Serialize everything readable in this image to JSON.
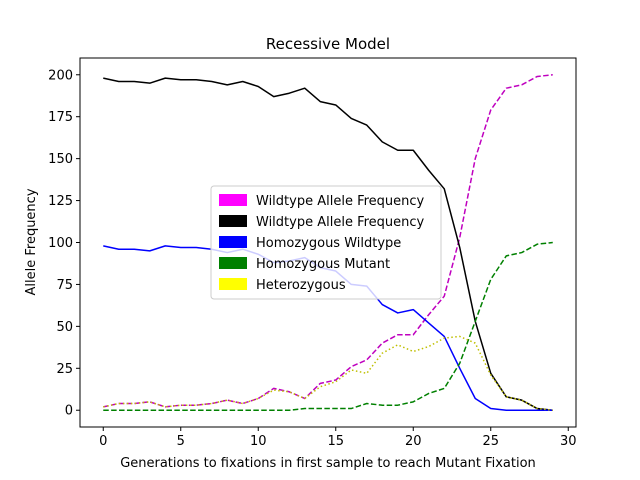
{
  "chart_data": {
    "type": "line",
    "title": "Recessive Model",
    "xlabel": "Generations to fixations in first sample to reach Mutant Fixation",
    "ylabel": "Allele Frequency",
    "xlim": [
      -1.5,
      30.5
    ],
    "ylim": [
      -10,
      210
    ],
    "xticks": [
      0,
      5,
      10,
      15,
      20,
      25,
      30
    ],
    "yticks": [
      0,
      25,
      50,
      75,
      100,
      125,
      150,
      175,
      200
    ],
    "grid": false,
    "legend_placement": "center",
    "x": [
      0,
      1,
      2,
      3,
      4,
      5,
      6,
      7,
      8,
      9,
      10,
      11,
      12,
      13,
      14,
      15,
      16,
      17,
      18,
      19,
      20,
      21,
      22,
      23,
      24,
      25,
      26,
      27,
      28,
      29
    ],
    "series": [
      {
        "name": "Wildtype Allele Frequency",
        "color": "#bf00bf",
        "legend_color": "#ff00ff",
        "style": "dashed",
        "values": [
          2,
          4,
          4,
          5,
          2,
          3,
          3,
          4,
          6,
          4,
          7,
          13,
          11,
          7,
          16,
          18,
          26,
          30,
          40,
          45,
          45,
          57,
          68,
          103,
          150,
          179,
          192,
          194,
          199,
          200
        ]
      },
      {
        "name": "Wildtype Allele Frequency",
        "color": "#000000",
        "legend_color": "#000000",
        "style": "solid",
        "values": [
          198,
          196,
          196,
          195,
          198,
          197,
          197,
          196,
          194,
          196,
          193,
          187,
          189,
          192,
          184,
          182,
          174,
          170,
          160,
          155,
          155,
          143,
          132,
          97,
          53,
          22,
          8,
          6,
          1,
          0
        ]
      },
      {
        "name": "Homozygous Wildtype",
        "color": "#0000ff",
        "legend_color": "#0000ff",
        "style": "solid",
        "values": [
          98,
          96,
          96,
          95,
          98,
          97,
          97,
          96,
          94,
          96,
          93,
          88,
          89,
          91,
          85,
          83,
          75,
          74,
          63,
          58,
          60,
          52,
          44,
          25,
          7,
          1,
          0,
          0,
          0,
          0
        ]
      },
      {
        "name": "Homozygous Mutant",
        "color": "#008000",
        "legend_color": "#008000",
        "style": "dashed",
        "values": [
          0,
          0,
          0,
          0,
          0,
          0,
          0,
          0,
          0,
          0,
          0,
          0,
          0,
          1,
          1,
          1,
          1,
          4,
          3,
          3,
          5,
          10,
          13,
          28,
          53,
          78,
          92,
          94,
          99,
          100
        ]
      },
      {
        "name": "Heterozygous",
        "color": "#bfbf00",
        "legend_color": "#ffff00",
        "style": "dotted",
        "values": [
          2,
          4,
          4,
          5,
          2,
          3,
          3,
          4,
          6,
          4,
          7,
          12,
          11,
          7,
          14,
          17,
          24,
          22,
          34,
          39,
          35,
          38,
          43,
          44,
          40,
          21,
          8,
          6,
          1,
          0
        ]
      }
    ]
  }
}
